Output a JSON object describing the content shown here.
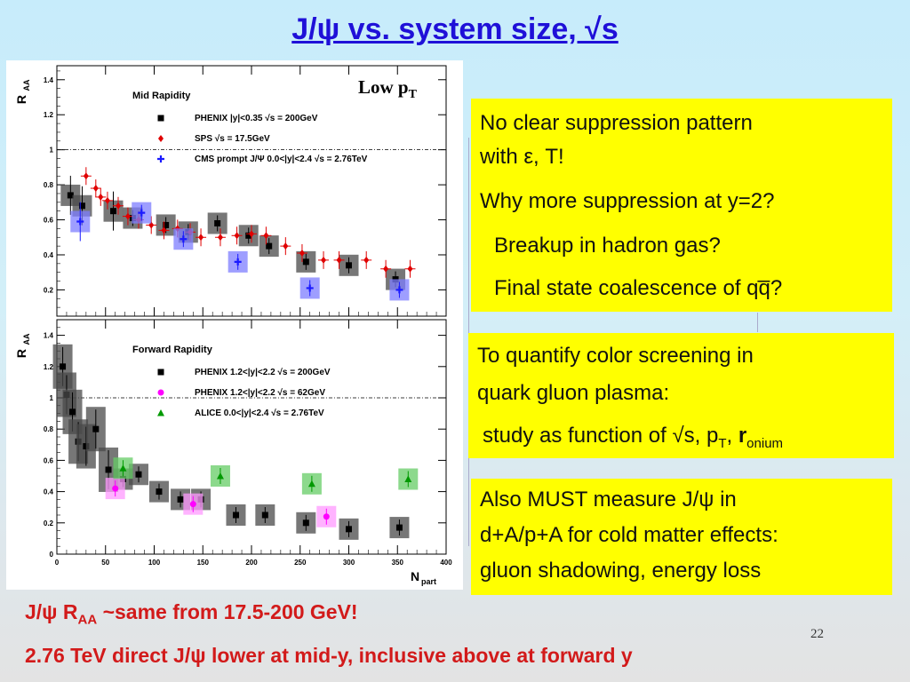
{
  "title": "J/ψ vs. system size, √s",
  "figure_label": "Low p",
  "figure_label_sub": "T",
  "chart_data": [
    {
      "type": "scatter",
      "panel": "top",
      "title": "Mid Rapidity",
      "ylabel": "R",
      "ylabel_sub": "AA",
      "xlim": [
        0,
        400
      ],
      "ylim": [
        0.05,
        1.48
      ],
      "yticks": [
        "0.2",
        "0.4",
        "0.6",
        "0.8",
        "1",
        "1.2",
        "1.4"
      ],
      "reference_line": 1,
      "series": [
        {
          "name": "PHENIX |y|<0.35 √s = 200GeV",
          "marker": "square",
          "color": "#000000",
          "box_color": "#4a4a4a",
          "points": [
            [
              14,
              0.74
            ],
            [
              26,
              0.68
            ],
            [
              58,
              0.65
            ],
            [
              78,
              0.61
            ],
            [
              112,
              0.57
            ],
            [
              135,
              0.53
            ],
            [
              165,
              0.58
            ],
            [
              197,
              0.51
            ],
            [
              218,
              0.45
            ],
            [
              256,
              0.36
            ],
            [
              300,
              0.34
            ],
            [
              348,
              0.26
            ]
          ]
        },
        {
          "name": "SPS √s = 17.5GeV",
          "marker": "diamond",
          "color": "#e00000",
          "points": [
            [
              30,
              0.85
            ],
            [
              40,
              0.78
            ],
            [
              45,
              0.73
            ],
            [
              52,
              0.71
            ],
            [
              63,
              0.68
            ],
            [
              73,
              0.62
            ],
            [
              84,
              0.6
            ],
            [
              97,
              0.57
            ],
            [
              110,
              0.54
            ],
            [
              124,
              0.55
            ],
            [
              137,
              0.53
            ],
            [
              148,
              0.5
            ],
            [
              168,
              0.5
            ],
            [
              185,
              0.51
            ],
            [
              200,
              0.52
            ],
            [
              215,
              0.51
            ],
            [
              235,
              0.45
            ],
            [
              252,
              0.41
            ],
            [
              274,
              0.37
            ],
            [
              290,
              0.37
            ],
            [
              318,
              0.37
            ],
            [
              338,
              0.32
            ],
            [
              363,
              0.32
            ]
          ]
        },
        {
          "name": "CMS prompt J/Ψ 0.0<|y|<2.4 √s = 2.76TeV",
          "marker": "cross",
          "color": "#1a1aff",
          "box_color": "#7d7dff",
          "points": [
            [
              24,
              0.59
            ],
            [
              87,
              0.64
            ],
            [
              130,
              0.49
            ],
            [
              186,
              0.36
            ],
            [
              260,
              0.21
            ],
            [
              352,
              0.2
            ]
          ]
        }
      ]
    },
    {
      "type": "scatter",
      "panel": "bottom",
      "title": "Forward Rapidity",
      "ylabel": "R",
      "ylabel_sub": "AA",
      "xlabel": "N",
      "xlabel_sub": "part",
      "xlim": [
        0,
        400
      ],
      "ylim": [
        0,
        1.5
      ],
      "xticks": [
        "0",
        "50",
        "100",
        "150",
        "200",
        "250",
        "300",
        "350",
        "400"
      ],
      "yticks": [
        "0",
        "0.2",
        "0.4",
        "0.6",
        "0.8",
        "1",
        "1.2",
        "1.4"
      ],
      "reference_line": 1,
      "series": [
        {
          "name": "PHENIX 1.2<|y|<2.2 √s = 200GeV",
          "marker": "square",
          "color": "#000000",
          "box_color": "#4a4a4a",
          "points": [
            [
              6,
              1.2
            ],
            [
              10,
              1.02
            ],
            [
              16,
              0.91
            ],
            [
              22,
              0.72
            ],
            [
              30,
              0.69
            ],
            [
              40,
              0.8
            ],
            [
              53,
              0.54
            ],
            [
              68,
              0.48
            ],
            [
              84,
              0.51
            ],
            [
              105,
              0.4
            ],
            [
              127,
              0.35
            ],
            [
              148,
              0.35
            ],
            [
              184,
              0.25
            ],
            [
              214,
              0.25
            ],
            [
              256,
              0.2
            ],
            [
              300,
              0.16
            ],
            [
              352,
              0.17
            ]
          ]
        },
        {
          "name": "PHENIX 1.2<|y|<2.2 √s = 62GeV",
          "marker": "circle",
          "color": "#ff00ff",
          "box_color": "#ff99ff",
          "points": [
            [
              60,
              0.42
            ],
            [
              140,
              0.32
            ],
            [
              277,
              0.24
            ]
          ]
        },
        {
          "name": "ALICE  0.0<|y|<2.4 √s = 2.76TeV",
          "marker": "triangle",
          "color": "#009900",
          "box_color": "#66cc66",
          "points": [
            [
              68,
              0.55
            ],
            [
              168,
              0.5
            ],
            [
              262,
              0.45
            ],
            [
              361,
              0.48
            ]
          ]
        }
      ]
    }
  ],
  "boxes": [
    {
      "lines": [
        "No clear suppression pattern",
        "with ε, T!",
        "Why more suppression at y=2?",
        "Breakup in hadron gas?",
        "Final state coalescence of qq̅?"
      ]
    },
    {
      "lines": [
        "To quantify color screening in",
        "quark gluon plasma:",
        "study as function of √s, p",
        "T",
        ", ",
        "r",
        "onium"
      ]
    },
    {
      "lines": [
        "Also MUST measure J/ψ in",
        "d+A/p+A for cold matter effects:",
        "gluon shadowing, energy loss"
      ]
    }
  ],
  "bottom": {
    "line1_a": "J/ψ R",
    "line1_sub": "AA",
    "line1_b": " ~same from 17.5-200 GeV!",
    "line2": "2.76 TeV direct J/ψ lower at mid-y, inclusive above at forward y"
  },
  "page_number": "22"
}
